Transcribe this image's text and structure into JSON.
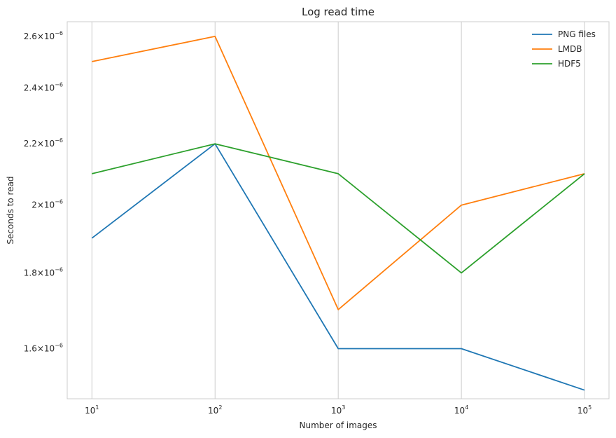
{
  "chart_data": {
    "type": "line",
    "title": "Log read time",
    "xlabel": "Number of images",
    "ylabel": "Seconds to read",
    "x_scale": "log",
    "y_scale": "log",
    "x": [
      10,
      100,
      1000,
      10000,
      100000
    ],
    "x_ticks": [
      {
        "base": "10",
        "exp": "1"
      },
      {
        "base": "10",
        "exp": "2"
      },
      {
        "base": "10",
        "exp": "3"
      },
      {
        "base": "10",
        "exp": "4"
      },
      {
        "base": "10",
        "exp": "5"
      }
    ],
    "y_ticks": [
      {
        "value": 1.6e-06,
        "mant": "1.6",
        "exp": "−6"
      },
      {
        "value": 1.8e-06,
        "mant": "1.8",
        "exp": "−6"
      },
      {
        "value": 2e-06,
        "mant": "2",
        "exp": "−6"
      },
      {
        "value": 2.2e-06,
        "mant": "2.2",
        "exp": "−6"
      },
      {
        "value": 2.4e-06,
        "mant": "2.4",
        "exp": "−6"
      },
      {
        "value": 2.6e-06,
        "mant": "2.6",
        "exp": "−6"
      }
    ],
    "xlim": [
      6.3,
      158000
    ],
    "ylim": [
      1.48e-06,
      2.66e-06
    ],
    "grid": "x-only",
    "legend_position": "top-right",
    "series": [
      {
        "name": "PNG files",
        "color": "#1f77b4",
        "values": [
          1.9e-06,
          2.2e-06,
          1.6e-06,
          1.6e-06,
          1.5e-06
        ]
      },
      {
        "name": "LMDB",
        "color": "#ff7f0e",
        "values": [
          2.5e-06,
          2.6e-06,
          1.7e-06,
          2e-06,
          2.1e-06
        ]
      },
      {
        "name": "HDF5",
        "color": "#2ca02c",
        "values": [
          2.1e-06,
          2.2e-06,
          2.1e-06,
          1.8e-06,
          2.1e-06
        ]
      }
    ]
  }
}
